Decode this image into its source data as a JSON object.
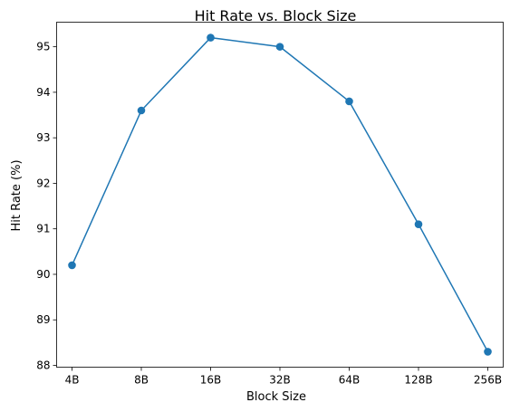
{
  "chart_data": {
    "type": "line",
    "title": "Hit Rate vs. Block Size",
    "xlabel": "Block Size",
    "ylabel": "Hit Rate (%)",
    "categories": [
      "4B",
      "8B",
      "16B",
      "32B",
      "64B",
      "128B",
      "256B"
    ],
    "series": [
      {
        "values": [
          90.2,
          93.6,
          95.2,
          95.0,
          93.8,
          91.1,
          88.3
        ]
      }
    ],
    "yticks": [
      88,
      89,
      90,
      91,
      92,
      93,
      94,
      95
    ],
    "ylim": [
      87.96,
      95.54
    ],
    "grid": false,
    "marker": "circle",
    "color": "#1f77b4"
  }
}
